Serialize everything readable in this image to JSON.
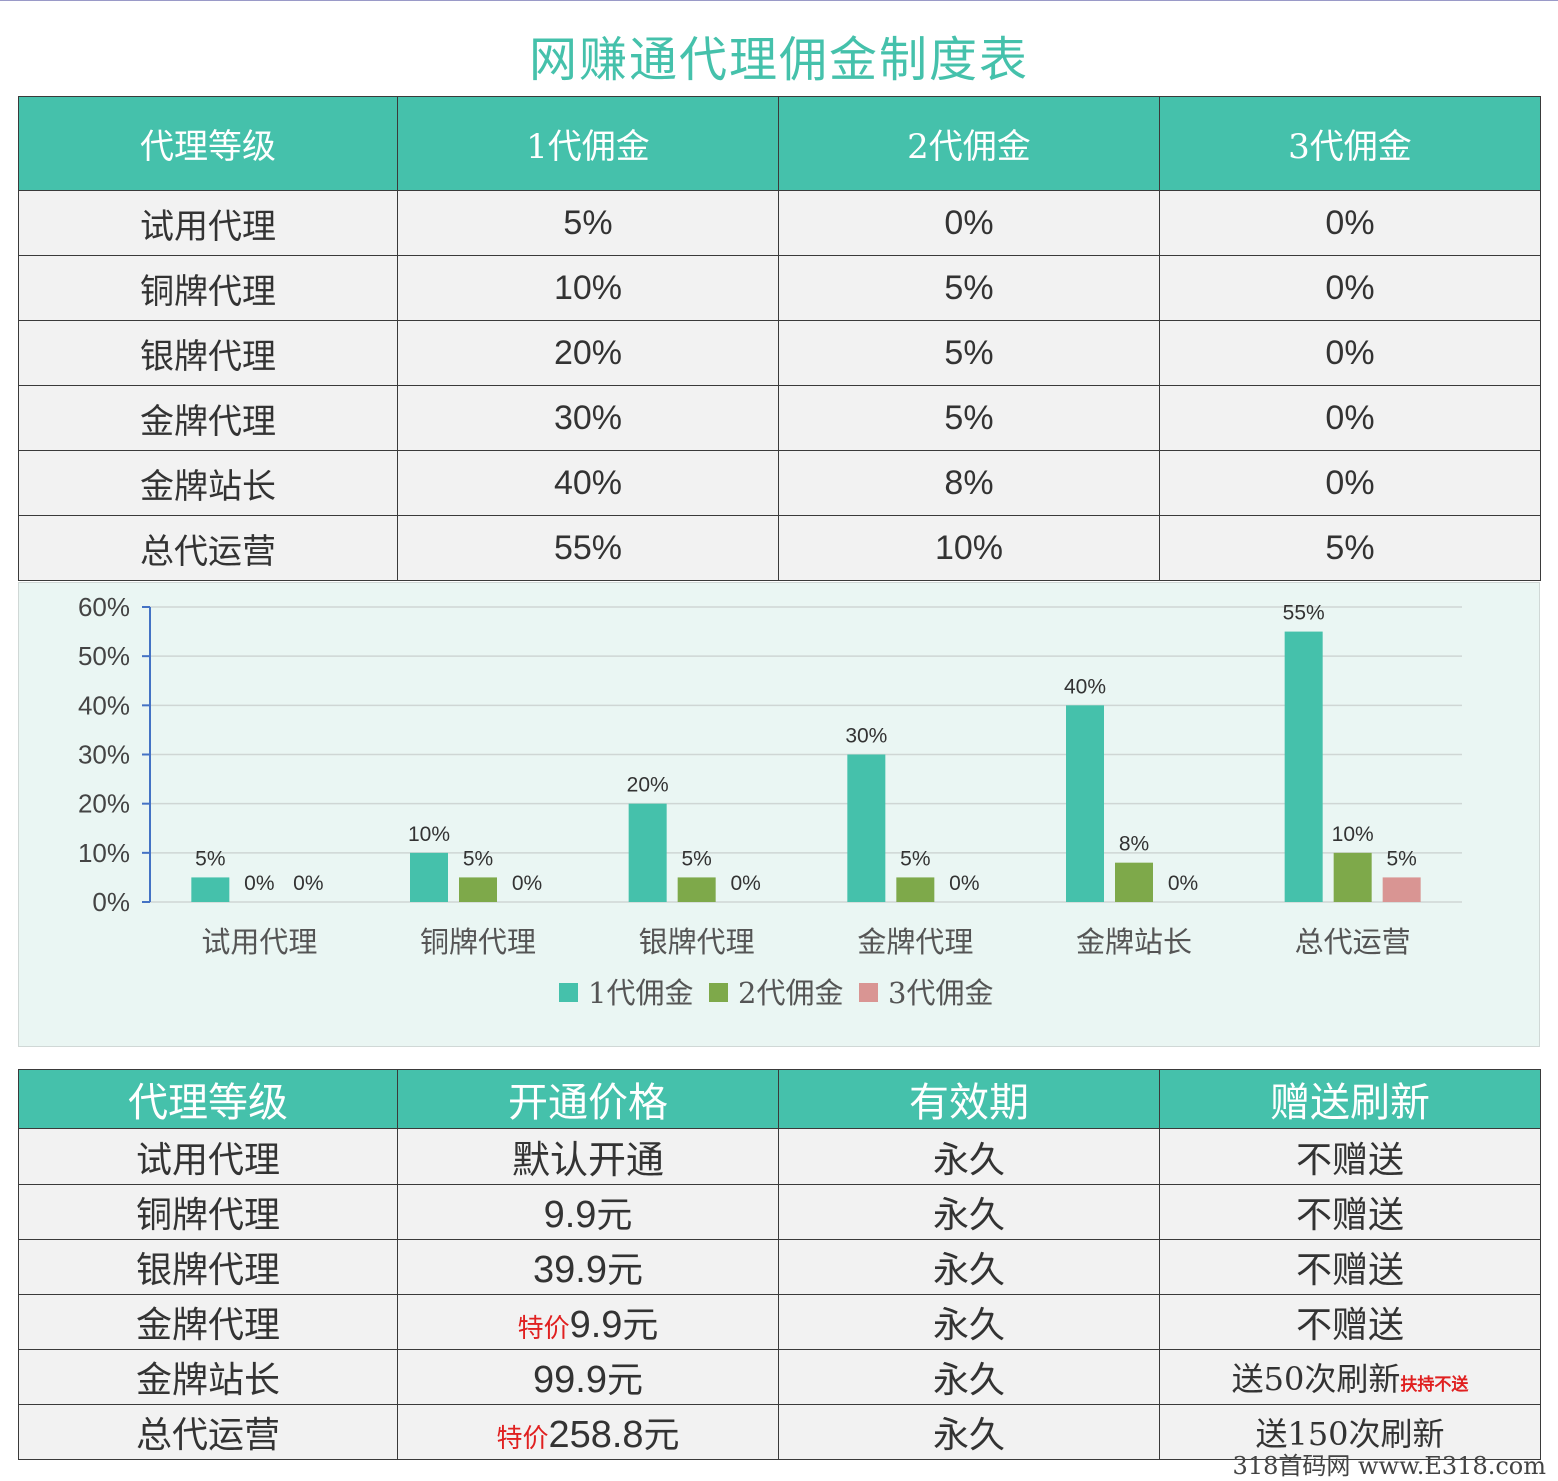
{
  "title": "网赚通代理佣金制度表",
  "commission_table": {
    "headers": [
      "代理等级",
      "1代佣金",
      "2代佣金",
      "3代佣金"
    ],
    "rows": [
      [
        "试用代理",
        "5%",
        "0%",
        "0%"
      ],
      [
        "铜牌代理",
        "10%",
        "5%",
        "0%"
      ],
      [
        "银牌代理",
        "20%",
        "5%",
        "0%"
      ],
      [
        "金牌代理",
        "30%",
        "5%",
        "0%"
      ],
      [
        "金牌站长",
        "40%",
        "8%",
        "0%"
      ],
      [
        "总代运营",
        "55%",
        "10%",
        "5%"
      ]
    ]
  },
  "chart_data": {
    "type": "bar",
    "categories": [
      "试用代理",
      "铜牌代理",
      "银牌代理",
      "金牌代理",
      "金牌站长",
      "总代运营"
    ],
    "series": [
      {
        "name": "1代佣金",
        "values": [
          5,
          10,
          20,
          30,
          40,
          55
        ],
        "color": "#45c1ab"
      },
      {
        "name": "2代佣金",
        "values": [
          0,
          5,
          5,
          5,
          8,
          10
        ],
        "color": "#7ea94a"
      },
      {
        "name": "3代佣金",
        "values": [
          0,
          0,
          0,
          0,
          0,
          5
        ],
        "color": "#d99593"
      }
    ],
    "ylim": [
      0,
      60
    ],
    "yticks": [
      "0%",
      "10%",
      "20%",
      "30%",
      "40%",
      "50%",
      "60%"
    ],
    "data_labels": true,
    "grid": true,
    "legend": "bottom"
  },
  "price_table": {
    "headers": [
      "代理等级",
      "开通价格",
      "有效期",
      "赠送刷新"
    ],
    "rows": [
      {
        "level": "试用代理",
        "price_prefix": "",
        "price": "默认开通",
        "price_suffix": "",
        "validity": "永久",
        "gift": "不赠送",
        "gift_note": ""
      },
      {
        "level": "铜牌代理",
        "price_prefix": "",
        "price": "9.9",
        "price_suffix": "元",
        "validity": "永久",
        "gift": "不赠送",
        "gift_note": ""
      },
      {
        "level": "银牌代理",
        "price_prefix": "",
        "price": "39.9",
        "price_suffix": "元",
        "validity": "永久",
        "gift": "不赠送",
        "gift_note": ""
      },
      {
        "level": "金牌代理",
        "price_prefix": "特价",
        "price": "9.9",
        "price_suffix": "元",
        "validity": "永久",
        "gift": "不赠送",
        "gift_note": ""
      },
      {
        "level": "金牌站长",
        "price_prefix": "",
        "price": "99.9",
        "price_suffix": "元",
        "validity": "永久",
        "gift": "送50次刷新",
        "gift_note": "扶持不送"
      },
      {
        "level": "总代运营",
        "price_prefix": "特价",
        "price": "258.8",
        "price_suffix": "元",
        "validity": "永久",
        "gift": "送150次刷新",
        "gift_note": ""
      }
    ]
  },
  "watermark": "318首码网 www.E318.com"
}
